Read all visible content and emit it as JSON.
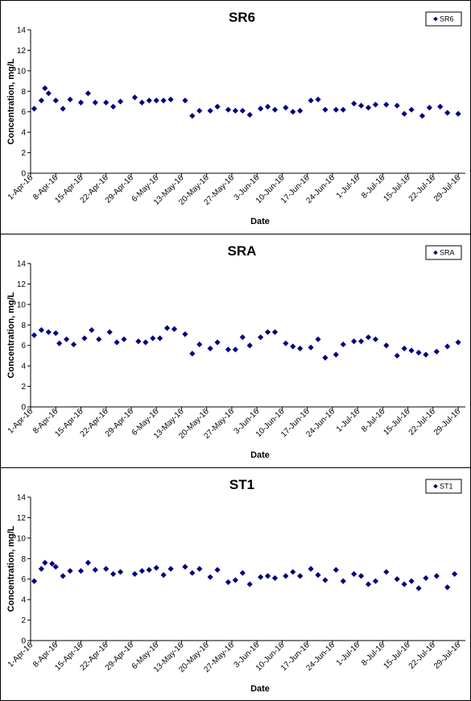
{
  "chart_data": [
    {
      "type": "scatter",
      "title": "SR6",
      "xlabel": "Date",
      "ylabel": "Concentration, mg/L",
      "ylim": [
        0,
        14
      ],
      "yticks": [
        0,
        2,
        4,
        6,
        8,
        10,
        12,
        14
      ],
      "xlim": [
        "2016-04-01",
        "2016-07-31"
      ],
      "xticks": [
        "2016-04-01",
        "2016-04-08",
        "2016-04-15",
        "2016-04-22",
        "2016-04-29",
        "2016-05-06",
        "2016-05-13",
        "2016-05-20",
        "2016-05-27",
        "2016-06-03",
        "2016-06-10",
        "2016-06-17",
        "2016-06-24",
        "2016-07-01",
        "2016-07-08",
        "2016-07-15",
        "2016-07-22",
        "2016-07-29"
      ],
      "xticklabels": [
        "1-Apr-16",
        "8-Apr-16",
        "15-Apr-16",
        "22-Apr-16",
        "29-Apr-16",
        "6-May-16",
        "13-May-16",
        "20-May-16",
        "27-May-16",
        "3-Jun-16",
        "10-Jun-16",
        "17-Jun-16",
        "24-Jun-16",
        "1-Jul-16",
        "8-Jul-16",
        "15-Jul-16",
        "22-Jul-16",
        "29-Jul-16"
      ],
      "grid": false,
      "legend": "top-right",
      "series": [
        {
          "name": "SR6",
          "color": "#000080",
          "marker": "diamond",
          "points": [
            [
              "2016-04-02",
              6.3
            ],
            [
              "2016-04-04",
              7.1
            ],
            [
              "2016-04-05",
              8.3
            ],
            [
              "2016-04-06",
              7.8
            ],
            [
              "2016-04-08",
              7.1
            ],
            [
              "2016-04-10",
              6.3
            ],
            [
              "2016-04-12",
              7.2
            ],
            [
              "2016-04-15",
              6.9
            ],
            [
              "2016-04-17",
              7.8
            ],
            [
              "2016-04-19",
              6.9
            ],
            [
              "2016-04-22",
              6.9
            ],
            [
              "2016-04-24",
              6.5
            ],
            [
              "2016-04-26",
              7.0
            ],
            [
              "2016-04-30",
              7.4
            ],
            [
              "2016-05-02",
              6.9
            ],
            [
              "2016-05-04",
              7.1
            ],
            [
              "2016-05-06",
              7.1
            ],
            [
              "2016-05-08",
              7.1
            ],
            [
              "2016-05-10",
              7.2
            ],
            [
              "2016-05-14",
              7.1
            ],
            [
              "2016-05-16",
              5.6
            ],
            [
              "2016-05-18",
              6.1
            ],
            [
              "2016-05-21",
              6.1
            ],
            [
              "2016-05-23",
              6.5
            ],
            [
              "2016-05-26",
              6.2
            ],
            [
              "2016-05-28",
              6.1
            ],
            [
              "2016-05-30",
              6.1
            ],
            [
              "2016-06-01",
              5.7
            ],
            [
              "2016-06-04",
              6.3
            ],
            [
              "2016-06-06",
              6.5
            ],
            [
              "2016-06-08",
              6.2
            ],
            [
              "2016-06-11",
              6.4
            ],
            [
              "2016-06-13",
              6.0
            ],
            [
              "2016-06-15",
              6.1
            ],
            [
              "2016-06-18",
              7.1
            ],
            [
              "2016-06-20",
              7.2
            ],
            [
              "2016-06-22",
              6.2
            ],
            [
              "2016-06-25",
              6.2
            ],
            [
              "2016-06-27",
              6.2
            ],
            [
              "2016-06-30",
              6.8
            ],
            [
              "2016-07-02",
              6.6
            ],
            [
              "2016-07-04",
              6.4
            ],
            [
              "2016-07-06",
              6.7
            ],
            [
              "2016-07-09",
              6.7
            ],
            [
              "2016-07-12",
              6.6
            ],
            [
              "2016-07-14",
              5.8
            ],
            [
              "2016-07-16",
              6.2
            ],
            [
              "2016-07-19",
              5.6
            ],
            [
              "2016-07-21",
              6.4
            ],
            [
              "2016-07-24",
              6.5
            ],
            [
              "2016-07-26",
              5.9
            ],
            [
              "2016-07-29",
              5.8
            ]
          ]
        }
      ]
    },
    {
      "type": "scatter",
      "title": "SRA",
      "xlabel": "Date",
      "ylabel": "Concentration, mg/L",
      "ylim": [
        0,
        14
      ],
      "yticks": [
        0,
        2,
        4,
        6,
        8,
        10,
        12,
        14
      ],
      "xlim": [
        "2016-04-01",
        "2016-07-31"
      ],
      "xticks": [
        "2016-04-01",
        "2016-04-08",
        "2016-04-15",
        "2016-04-22",
        "2016-04-29",
        "2016-05-06",
        "2016-05-13",
        "2016-05-20",
        "2016-05-27",
        "2016-06-03",
        "2016-06-10",
        "2016-06-17",
        "2016-06-24",
        "2016-07-01",
        "2016-07-08",
        "2016-07-15",
        "2016-07-22",
        "2016-07-29"
      ],
      "xticklabels": [
        "1-Apr-16",
        "8-Apr-16",
        "15-Apr-16",
        "22-Apr-16",
        "29-Apr-16",
        "6-May-16",
        "13-May-16",
        "20-May-16",
        "27-May-16",
        "3-Jun-16",
        "10-Jun-16",
        "17-Jun-16",
        "24-Jun-16",
        "1-Jul-16",
        "8-Jul-16",
        "15-Jul-16",
        "22-Jul-16",
        "29-Jul-16"
      ],
      "grid": false,
      "legend": "top-right",
      "series": [
        {
          "name": "SRA",
          "color": "#000080",
          "marker": "diamond",
          "points": [
            [
              "2016-04-02",
              7.0
            ],
            [
              "2016-04-04",
              7.5
            ],
            [
              "2016-04-06",
              7.3
            ],
            [
              "2016-04-08",
              7.2
            ],
            [
              "2016-04-09",
              6.2
            ],
            [
              "2016-04-11",
              6.6
            ],
            [
              "2016-04-13",
              6.1
            ],
            [
              "2016-04-16",
              6.7
            ],
            [
              "2016-04-18",
              7.5
            ],
            [
              "2016-04-20",
              6.6
            ],
            [
              "2016-04-23",
              7.3
            ],
            [
              "2016-04-25",
              6.3
            ],
            [
              "2016-04-27",
              6.6
            ],
            [
              "2016-05-01",
              6.4
            ],
            [
              "2016-05-03",
              6.3
            ],
            [
              "2016-05-05",
              6.7
            ],
            [
              "2016-05-07",
              6.7
            ],
            [
              "2016-05-09",
              7.7
            ],
            [
              "2016-05-11",
              7.6
            ],
            [
              "2016-05-14",
              7.1
            ],
            [
              "2016-05-16",
              5.2
            ],
            [
              "2016-05-18",
              6.1
            ],
            [
              "2016-05-21",
              5.7
            ],
            [
              "2016-05-23",
              6.3
            ],
            [
              "2016-05-26",
              5.6
            ],
            [
              "2016-05-28",
              5.6
            ],
            [
              "2016-05-30",
              6.8
            ],
            [
              "2016-06-01",
              6.0
            ],
            [
              "2016-06-04",
              6.8
            ],
            [
              "2016-06-06",
              7.3
            ],
            [
              "2016-06-08",
              7.3
            ],
            [
              "2016-06-11",
              6.2
            ],
            [
              "2016-06-13",
              5.9
            ],
            [
              "2016-06-15",
              5.7
            ],
            [
              "2016-06-18",
              5.8
            ],
            [
              "2016-06-20",
              6.6
            ],
            [
              "2016-06-22",
              4.8
            ],
            [
              "2016-06-25",
              5.1
            ],
            [
              "2016-06-27",
              6.1
            ],
            [
              "2016-06-30",
              6.4
            ],
            [
              "2016-07-02",
              6.4
            ],
            [
              "2016-07-04",
              6.8
            ],
            [
              "2016-07-06",
              6.6
            ],
            [
              "2016-07-09",
              6.0
            ],
            [
              "2016-07-12",
              5.0
            ],
            [
              "2016-07-14",
              5.7
            ],
            [
              "2016-07-16",
              5.5
            ],
            [
              "2016-07-18",
              5.3
            ],
            [
              "2016-07-20",
              5.1
            ],
            [
              "2016-07-23",
              5.4
            ],
            [
              "2016-07-26",
              5.9
            ],
            [
              "2016-07-29",
              6.3
            ]
          ]
        }
      ]
    },
    {
      "type": "scatter",
      "title": "ST1",
      "xlabel": "Date",
      "ylabel": "Concentration, mg/L",
      "ylim": [
        0,
        14
      ],
      "yticks": [
        0,
        2,
        4,
        6,
        8,
        10,
        12,
        14
      ],
      "xlim": [
        "2016-04-01",
        "2016-07-31"
      ],
      "xticks": [
        "2016-04-01",
        "2016-04-08",
        "2016-04-15",
        "2016-04-22",
        "2016-04-29",
        "2016-05-06",
        "2016-05-13",
        "2016-05-20",
        "2016-05-27",
        "2016-06-03",
        "2016-06-10",
        "2016-06-17",
        "2016-06-24",
        "2016-07-01",
        "2016-07-08",
        "2016-07-15",
        "2016-07-22",
        "2016-07-29"
      ],
      "xticklabels": [
        "1-Apr-16",
        "8-Apr-16",
        "15-Apr-16",
        "22-Apr-16",
        "29-Apr-16",
        "6-May-16",
        "13-May-16",
        "20-May-16",
        "27-May-16",
        "3-Jun-16",
        "10-Jun-16",
        "17-Jun-16",
        "24-Jun-16",
        "1-Jul-16",
        "8-Jul-16",
        "15-Jul-16",
        "22-Jul-16",
        "29-Jul-16"
      ],
      "grid": false,
      "legend": "top-right",
      "series": [
        {
          "name": "ST1",
          "color": "#000080",
          "marker": "diamond",
          "points": [
            [
              "2016-04-02",
              5.8
            ],
            [
              "2016-04-04",
              7.0
            ],
            [
              "2016-04-05",
              7.6
            ],
            [
              "2016-04-07",
              7.5
            ],
            [
              "2016-04-08",
              7.2
            ],
            [
              "2016-04-10",
              6.3
            ],
            [
              "2016-04-12",
              6.8
            ],
            [
              "2016-04-15",
              6.8
            ],
            [
              "2016-04-17",
              7.6
            ],
            [
              "2016-04-19",
              6.9
            ],
            [
              "2016-04-22",
              7.0
            ],
            [
              "2016-04-24",
              6.5
            ],
            [
              "2016-04-26",
              6.7
            ],
            [
              "2016-04-30",
              6.5
            ],
            [
              "2016-05-02",
              6.8
            ],
            [
              "2016-05-04",
              6.9
            ],
            [
              "2016-05-06",
              7.1
            ],
            [
              "2016-05-08",
              6.4
            ],
            [
              "2016-05-10",
              7.0
            ],
            [
              "2016-05-14",
              7.2
            ],
            [
              "2016-05-16",
              6.6
            ],
            [
              "2016-05-18",
              7.0
            ],
            [
              "2016-05-21",
              6.2
            ],
            [
              "2016-05-23",
              6.9
            ],
            [
              "2016-05-26",
              5.7
            ],
            [
              "2016-05-28",
              5.9
            ],
            [
              "2016-05-30",
              6.6
            ],
            [
              "2016-06-01",
              5.5
            ],
            [
              "2016-06-04",
              6.2
            ],
            [
              "2016-06-06",
              6.3
            ],
            [
              "2016-06-08",
              6.1
            ],
            [
              "2016-06-11",
              6.3
            ],
            [
              "2016-06-13",
              6.7
            ],
            [
              "2016-06-15",
              6.3
            ],
            [
              "2016-06-18",
              7.0
            ],
            [
              "2016-06-20",
              6.4
            ],
            [
              "2016-06-22",
              5.9
            ],
            [
              "2016-06-25",
              6.9
            ],
            [
              "2016-06-27",
              5.8
            ],
            [
              "2016-06-30",
              6.5
            ],
            [
              "2016-07-02",
              6.3
            ],
            [
              "2016-07-04",
              5.5
            ],
            [
              "2016-07-06",
              5.8
            ],
            [
              "2016-07-09",
              6.7
            ],
            [
              "2016-07-12",
              6.0
            ],
            [
              "2016-07-14",
              5.5
            ],
            [
              "2016-07-16",
              5.8
            ],
            [
              "2016-07-18",
              5.1
            ],
            [
              "2016-07-20",
              6.1
            ],
            [
              "2016-07-23",
              6.3
            ],
            [
              "2016-07-26",
              5.2
            ],
            [
              "2016-07-28",
              6.5
            ]
          ]
        }
      ]
    }
  ]
}
